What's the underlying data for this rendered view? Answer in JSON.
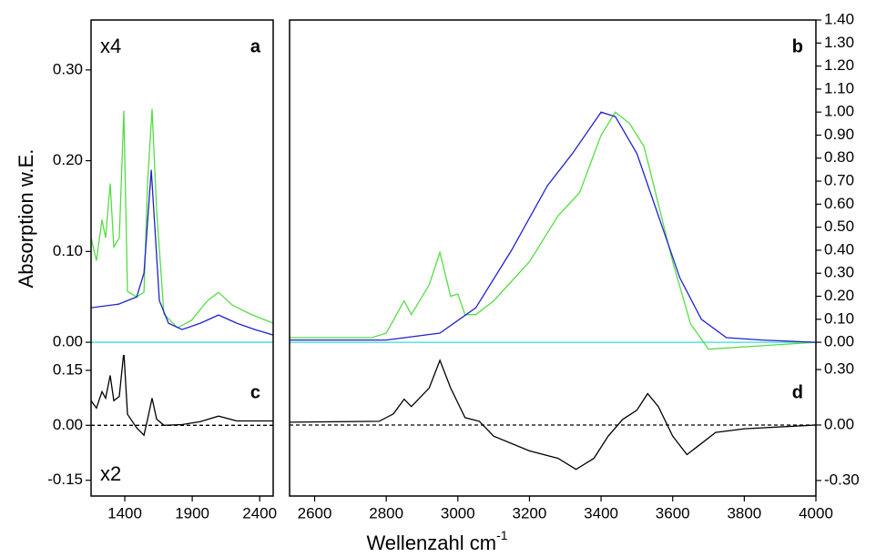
{
  "chart_data": {
    "type": "multi-panel-line",
    "ylabel": "Absorption w.E.",
    "xlabel": "Wellenzahl cm",
    "xlabel_sup": "-1",
    "columns": [
      {
        "xlim": [
          1150,
          2500
        ],
        "xticks": [
          1400,
          1900,
          2400
        ],
        "panels": [
          {
            "label": "a",
            "annotation": "x4",
            "axis_side": "left",
            "ylim": [
              -0.014,
              0.355
            ],
            "yticks": [
              {
                "value": 0,
                "label": "0.00"
              },
              {
                "value": 0.1,
                "label": "0.10"
              },
              {
                "value": 0.2,
                "label": "0.20"
              },
              {
                "value": 0.3,
                "label": "0.30"
              }
            ],
            "zero_line_color": "#33dddd",
            "zero_line_dashed": false,
            "series": [
              {
                "color": "#55dd44",
                "x": [
                  1150,
                  1190,
                  1231,
                  1258,
                  1292,
                  1319,
                  1359,
                  1393,
                  1420,
                  1488,
                  1542,
                  1569,
                  1602,
                  1636,
                  1690,
                  1791,
                  1893,
                  2014,
                  2095,
                  2196,
                  2331,
                  2500
                ],
                "values": [
                  0.115,
                  0.09,
                  0.135,
                  0.115,
                  0.175,
                  0.105,
                  0.115,
                  0.255,
                  0.056,
                  0.05,
                  0.055,
                  0.177,
                  0.257,
                  0.146,
                  0.031,
                  0.016,
                  0.024,
                  0.046,
                  0.055,
                  0.041,
                  0.031,
                  0.021
                ]
              },
              {
                "color": "#2222cc",
                "x": [
                  1150,
                  1353,
                  1488,
                  1542,
                  1575,
                  1596,
                  1623,
                  1656,
                  1724,
                  1825,
                  1960,
                  2095,
                  2230,
                  2365,
                  2500
                ],
                "values": [
                  0.038,
                  0.042,
                  0.05,
                  0.076,
                  0.146,
                  0.19,
                  0.126,
                  0.046,
                  0.021,
                  0.014,
                  0.021,
                  0.03,
                  0.021,
                  0.014,
                  0.008
                ]
              }
            ]
          },
          {
            "label": "c",
            "annotation": "x2",
            "axis_side": "left",
            "ylim": [
              -0.193,
              0.192
            ],
            "yticks": [
              -0.15,
              {
                "value": 0,
                "label": "0.00"
              },
              0.15
            ],
            "zero_line_color": "#000000",
            "zero_line_dashed": true,
            "series": [
              {
                "color": "#000000",
                "x": [
                  1150,
                  1190,
                  1231,
                  1258,
                  1292,
                  1319,
                  1359,
                  1393,
                  1420,
                  1488,
                  1542,
                  1569,
                  1602,
                  1636,
                  1690,
                  1825,
                  1960,
                  2095,
                  2230,
                  2500
                ],
                "values": [
                  0.067,
                  0.047,
                  0.092,
                  0.074,
                  0.136,
                  0.067,
                  0.079,
                  0.201,
                  0.03,
                  -0.007,
                  -0.027,
                  0.017,
                  0.074,
                  0.017,
                  0,
                  0.002,
                  0.01,
                  0.025,
                  0.012,
                  0.012
                ]
              }
            ]
          }
        ]
      },
      {
        "xlim": [
          2530,
          4000
        ],
        "xticks": [
          2600,
          2800,
          3000,
          3200,
          3400,
          3600,
          3800,
          4000
        ],
        "panels": [
          {
            "label": "b",
            "axis_side": "right",
            "ylim": [
              -0.055,
              1.4
            ],
            "yticks": [
              {
                "value": 0,
                "label": "0.00"
              },
              {
                "value": 0.1,
                "label": "0.10"
              },
              {
                "value": 0.2,
                "label": "0.20"
              },
              {
                "value": 0.3,
                "label": "0.30"
              },
              {
                "value": 0.4,
                "label": "0.40"
              },
              {
                "value": 0.5,
                "label": "0.50"
              },
              {
                "value": 0.6,
                "label": "0.60"
              },
              {
                "value": 0.7,
                "label": "0.70"
              },
              {
                "value": 0.8,
                "label": "0.80"
              },
              {
                "value": 0.9,
                "label": "0.90"
              },
              {
                "value": 1,
                "label": "1.00"
              },
              {
                "value": 1.1,
                "label": "1.10"
              },
              {
                "value": 1.2,
                "label": "1.20"
              },
              {
                "value": 1.3,
                "label": "1.30"
              },
              {
                "value": 1.4,
                "label": "1.40"
              }
            ],
            "zero_line_color": "#33dddd",
            "zero_line_dashed": false,
            "series": [
              {
                "color": "#55dd44",
                "x": [
                  2530,
                  2760,
                  2800,
                  2850,
                  2870,
                  2920,
                  2950,
                  2980,
                  3000,
                  3020,
                  3050,
                  3100,
                  3200,
                  3280,
                  3340,
                  3400,
                  3440,
                  3480,
                  3520,
                  3560,
                  3600,
                  3650,
                  3700,
                  3800,
                  4000
                ],
                "values": [
                  0.02,
                  0.02,
                  0.04,
                  0.18,
                  0.12,
                  0.25,
                  0.39,
                  0.2,
                  0.21,
                  0.12,
                  0.12,
                  0.18,
                  0.35,
                  0.55,
                  0.65,
                  0.9,
                  1.0,
                  0.95,
                  0.85,
                  0.6,
                  0.35,
                  0.08,
                  -0.03,
                  -0.02,
                  0
                ]
              },
              {
                "color": "#2222cc",
                "x": [
                  2530,
                  2800,
                  2950,
                  3050,
                  3150,
                  3250,
                  3320,
                  3400,
                  3440,
                  3500,
                  3560,
                  3620,
                  3680,
                  3750,
                  3850,
                  4000
                ],
                "values": [
                  0.01,
                  0.01,
                  0.04,
                  0.15,
                  0.4,
                  0.68,
                  0.82,
                  1.0,
                  0.98,
                  0.82,
                  0.55,
                  0.28,
                  0.1,
                  0.02,
                  0.01,
                  0
                ]
              }
            ]
          },
          {
            "label": "d",
            "axis_side": "right",
            "ylim": [
              -0.384,
              0.379
            ],
            "yticks": [
              {
                "value": -0.3,
                "label": "-0.30"
              },
              {
                "value": 0,
                "label": "0.00"
              },
              {
                "value": 0.3,
                "label": "0.30"
              }
            ],
            "zero_line_color": "#000000",
            "zero_line_dashed": true,
            "series": [
              {
                "color": "#000000",
                "x": [
                  2530,
                  2780,
                  2820,
                  2850,
                  2870,
                  2920,
                  2950,
                  2980,
                  3000,
                  3020,
                  3060,
                  3100,
                  3200,
                  3280,
                  3330,
                  3380,
                  3420,
                  3460,
                  3500,
                  3530,
                  3560,
                  3600,
                  3640,
                  3680,
                  3720,
                  3800,
                  4000
                ],
                "values": [
                  0.015,
                  0.02,
                  0.06,
                  0.14,
                  0.1,
                  0.2,
                  0.35,
                  0.2,
                  0.12,
                  0.04,
                  0.02,
                  -0.06,
                  -0.14,
                  -0.18,
                  -0.24,
                  -0.18,
                  -0.06,
                  0.03,
                  0.08,
                  0.17,
                  0.1,
                  -0.06,
                  -0.16,
                  -0.1,
                  -0.04,
                  -0.02,
                  0
                ]
              }
            ]
          }
        ]
      }
    ]
  }
}
